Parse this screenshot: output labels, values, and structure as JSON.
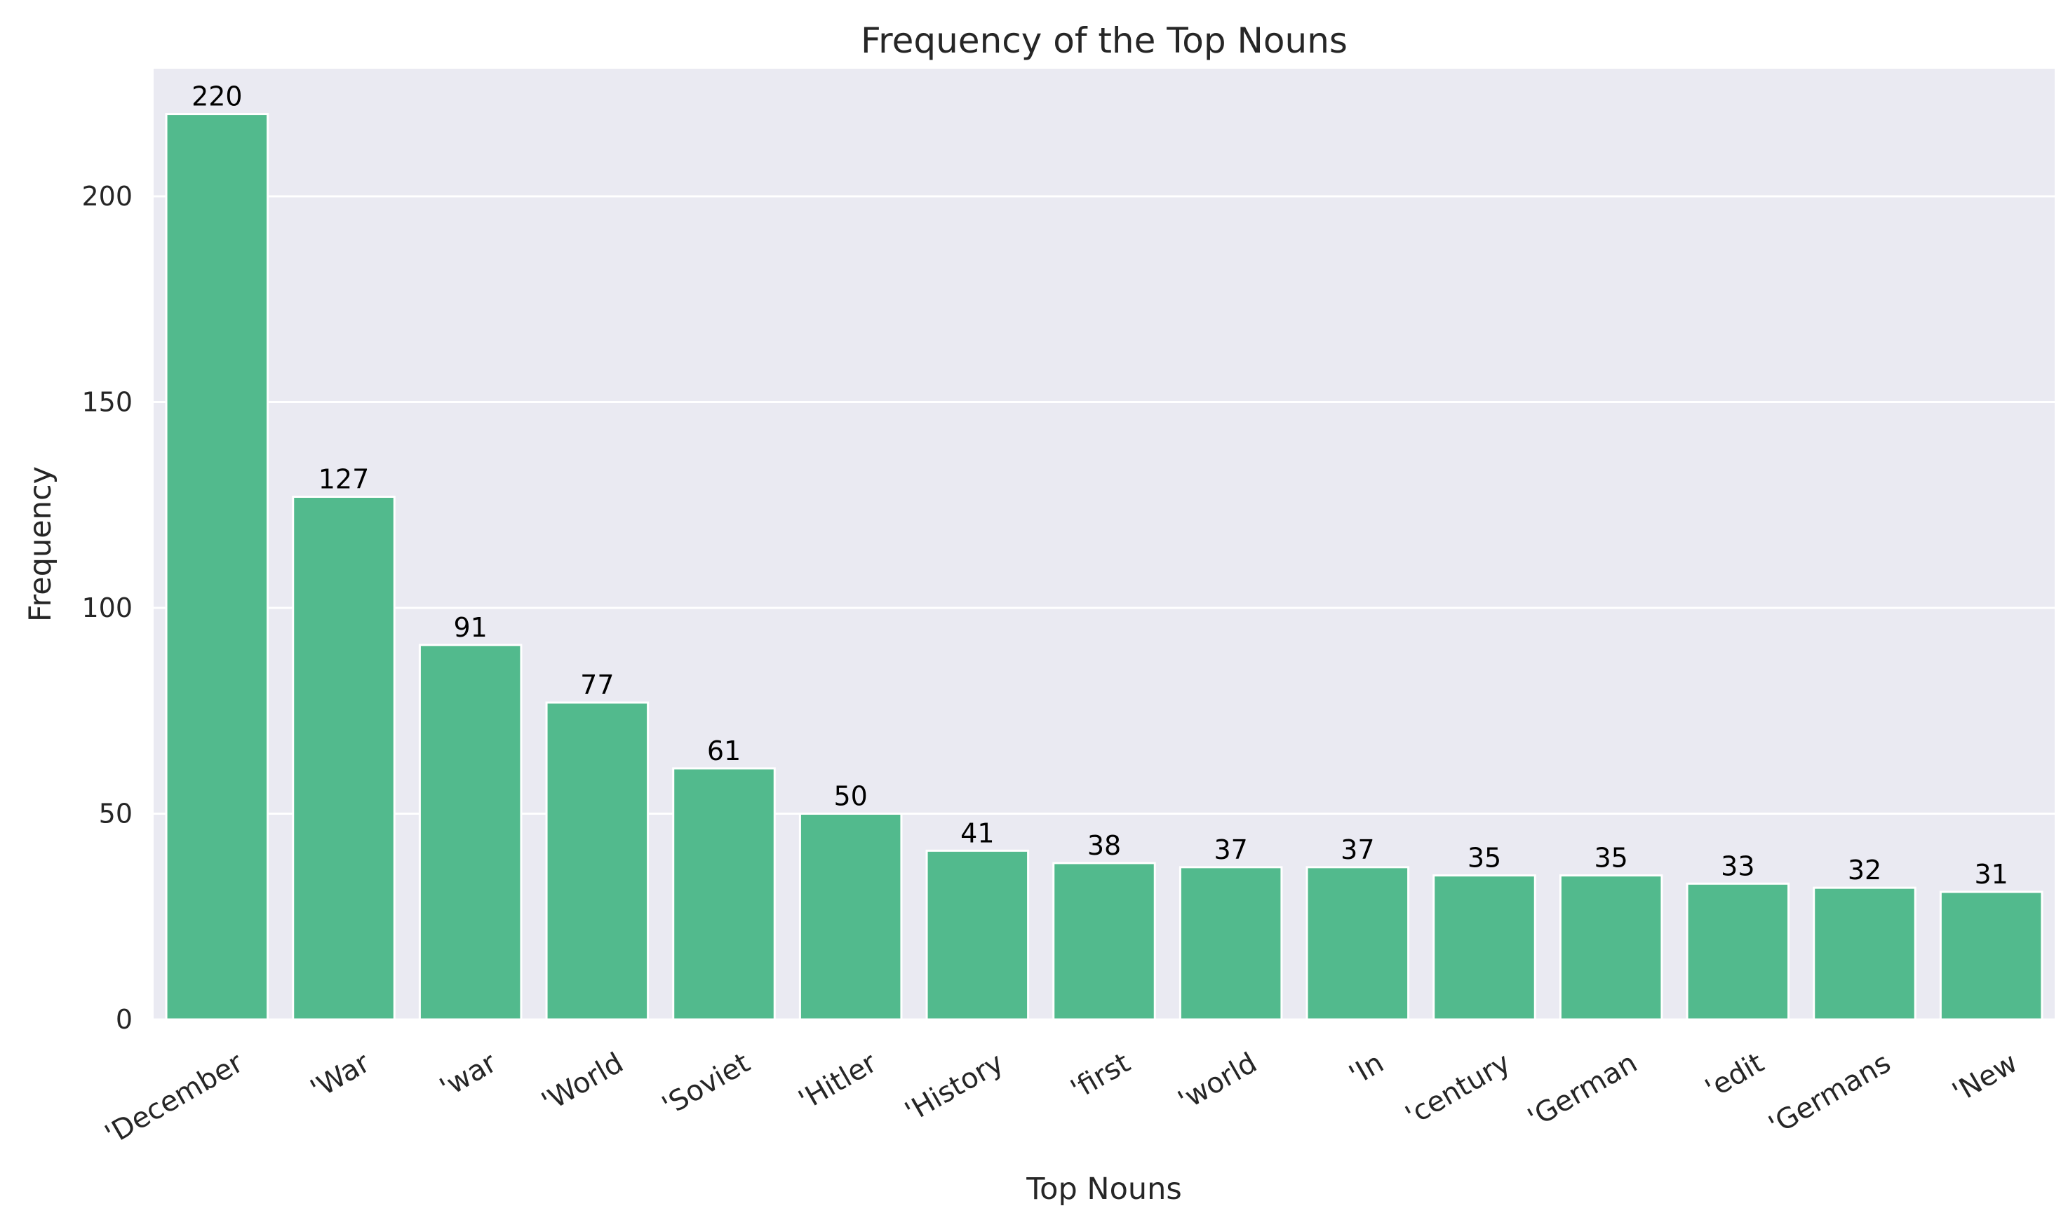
{
  "chart_data": {
    "type": "bar",
    "title": "Frequency of the Top Nouns",
    "xlabel": "Top Nouns",
    "ylabel": "Frequency",
    "categories": [
      "'December",
      "'War",
      "'war",
      "'World",
      "'Soviet",
      "'Hitler",
      "'History",
      "'first",
      "'world",
      "'In",
      "'century",
      "'German",
      "'edit",
      "'Germans",
      "'New"
    ],
    "values": [
      220,
      127,
      91,
      77,
      61,
      50,
      41,
      38,
      37,
      37,
      35,
      35,
      33,
      32,
      31
    ],
    "ylim": [
      0,
      231
    ],
    "yticks": [
      0,
      50,
      100,
      150,
      200
    ],
    "grid": true,
    "legend": "none",
    "colors": {
      "bar": "#52BA8D",
      "plot_background": "#EAEAF2",
      "grid": "#FFFFFF"
    }
  }
}
